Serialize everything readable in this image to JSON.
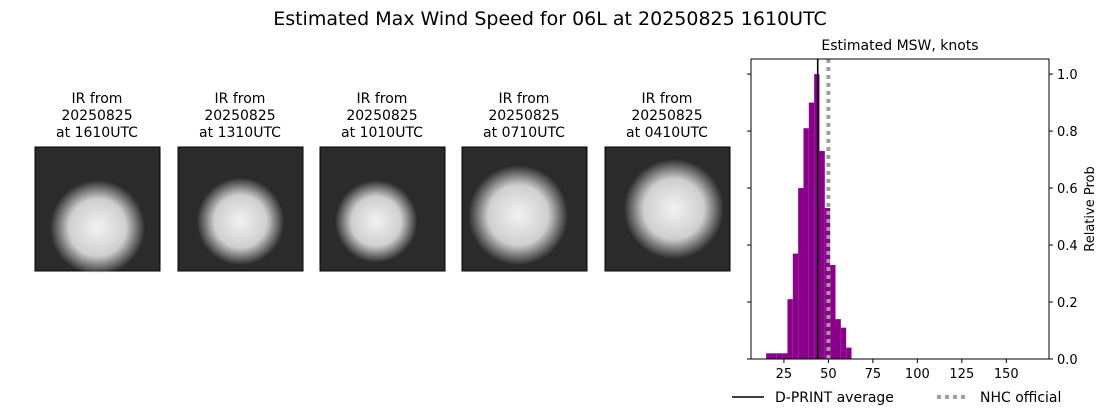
{
  "title": "Estimated Max Wind Speed for 06L at 20250825 1610UTC",
  "panels": [
    {
      "line1": "IR from",
      "date": "20250825",
      "time": "at 1610UTC"
    },
    {
      "line1": "IR from",
      "date": "20250825",
      "time": "at 1310UTC"
    },
    {
      "line1": "IR from",
      "date": "20250825",
      "time": "at 1010UTC"
    },
    {
      "line1": "IR from",
      "date": "20250825",
      "time": "at 0710UTC"
    },
    {
      "line1": "IR from",
      "date": "20250825",
      "time": "at 0410UTC"
    }
  ],
  "chart_data": {
    "type": "histogram",
    "title": "Estimated MSW, knots",
    "y_label": "Relative Prob",
    "bins": [
      15,
      18,
      21,
      24,
      27,
      30,
      33,
      36,
      39,
      42,
      45,
      48,
      51,
      54,
      57,
      60,
      63
    ],
    "values": [
      0.02,
      0.02,
      0.02,
      0.02,
      0.21,
      0.37,
      0.6,
      0.81,
      0.9,
      1.0,
      0.73,
      0.53,
      0.33,
      0.14,
      0.11,
      0.04
    ],
    "color": "#8b008b",
    "xlim": [
      6.5,
      174
    ],
    "xticks": [
      25,
      50,
      75,
      100,
      125,
      150
    ],
    "ylim": [
      0,
      1.053
    ],
    "yticks": [
      {
        "value": 0,
        "label": "0.0"
      },
      0.2,
      0.4,
      0.6,
      0.8,
      {
        "value": 1,
        "label": "1.0"
      }
    ],
    "lines": [
      {
        "name": "D-PRINT average",
        "value": 44,
        "color": "#000000",
        "style": "solid"
      },
      {
        "name": "NHC official",
        "value": 50,
        "color": "#a0a0a0",
        "style": "dotted"
      }
    ]
  }
}
